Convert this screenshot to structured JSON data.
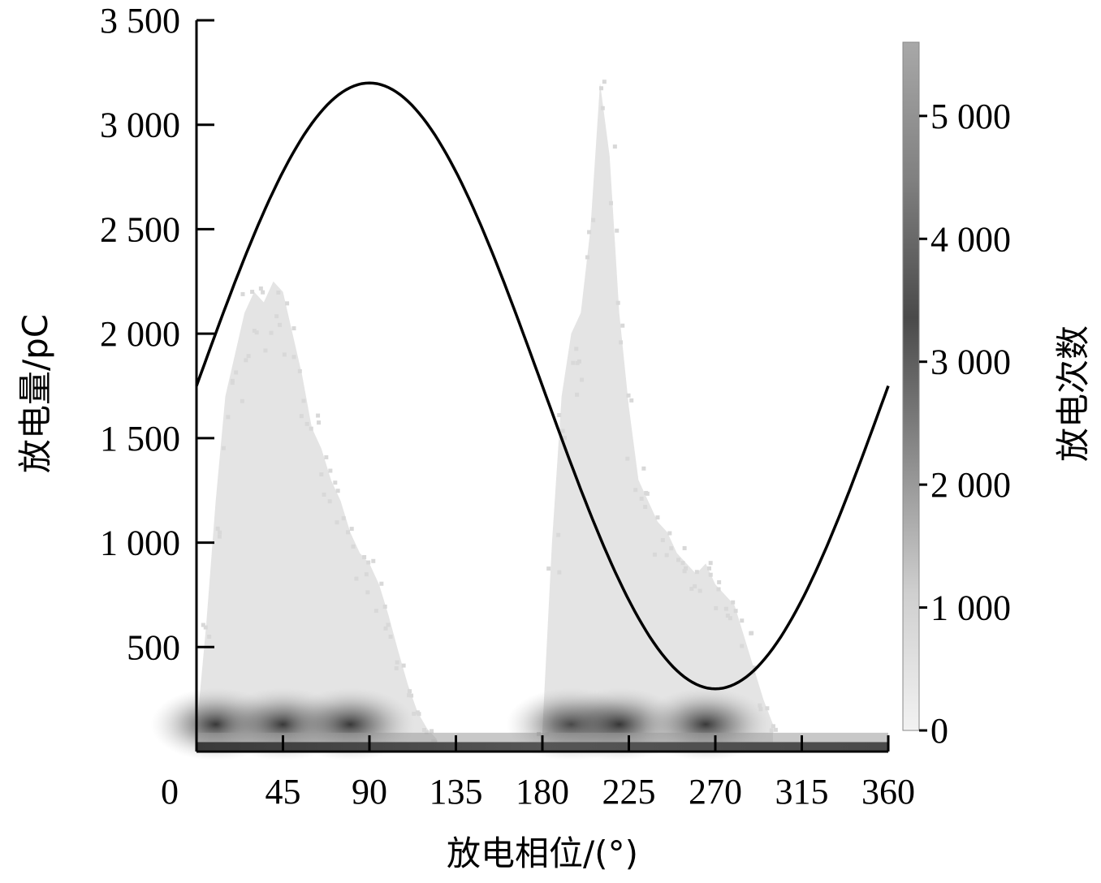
{
  "chart_data": {
    "type": "heatmap",
    "title": "",
    "xlabel": "放电相位/(°)",
    "ylabel": "放电量/pC",
    "colorbar_label": "放电次数",
    "xlim": [
      0,
      360
    ],
    "ylim": [
      0,
      3500
    ],
    "x_ticks": [
      0,
      45,
      90,
      135,
      180,
      225,
      270,
      315,
      360
    ],
    "x_tick_labels": [
      "0",
      "45",
      "90",
      "135",
      "180",
      "225",
      "270",
      "315",
      "360"
    ],
    "y_ticks": [
      500,
      1000,
      1500,
      2000,
      2500,
      3000,
      3500
    ],
    "y_tick_labels": [
      "500",
      "1 000",
      "1 500",
      "2 000",
      "2 500",
      "3 000",
      "3 500"
    ],
    "colorbar_range": [
      0,
      5600
    ],
    "colorbar_ticks": [
      0,
      1000,
      2000,
      3000,
      4000,
      5000
    ],
    "colorbar_tick_labels": [
      "0",
      "1 000",
      "2 000",
      "3 000",
      "4 000",
      "5 000"
    ],
    "sine_reference": {
      "phase_deg": [
        0,
        15,
        30,
        45,
        60,
        75,
        90,
        105,
        120,
        135,
        150,
        165,
        180,
        195,
        210,
        225,
        240,
        255,
        270,
        285,
        300,
        315,
        330,
        345,
        360
      ],
      "value": [
        1750,
        2125,
        2475,
        2775,
        3000,
        3150,
        3200,
        3150,
        3000,
        2775,
        2475,
        2125,
        1750,
        1375,
        1025,
        725,
        500,
        350,
        300,
        350,
        500,
        725,
        1025,
        1375,
        1750
      ]
    },
    "discharge_clusters": [
      {
        "phase_range_deg": [
          0,
          125
        ],
        "max_discharge_pC": 2250,
        "envelope": {
          "phase_deg": [
            0,
            5,
            10,
            15,
            20,
            25,
            30,
            35,
            40,
            45,
            50,
            55,
            60,
            65,
            70,
            75,
            80,
            85,
            90,
            95,
            100,
            105,
            110,
            115,
            120,
            125
          ],
          "discharge_pC": [
            100,
            600,
            1200,
            1700,
            1900,
            2100,
            2200,
            2150,
            2250,
            2200,
            2000,
            1800,
            1550,
            1450,
            1300,
            1200,
            1050,
            950,
            900,
            800,
            650,
            480,
            320,
            190,
            110,
            60
          ]
        },
        "dense_phase_deg": [
          10,
          45,
          80
        ]
      },
      {
        "phase_range_deg": [
          180,
          300
        ],
        "max_discharge_pC": 3200,
        "envelope": {
          "phase_deg": [
            180,
            185,
            190,
            195,
            200,
            205,
            210,
            215,
            220,
            225,
            230,
            235,
            240,
            245,
            250,
            255,
            260,
            265,
            270,
            275,
            280,
            285,
            290,
            295,
            300
          ],
          "discharge_pC": [
            100,
            1000,
            1700,
            2000,
            2100,
            2500,
            3200,
            2850,
            2100,
            1650,
            1300,
            1200,
            1100,
            1050,
            950,
            900,
            850,
            900,
            800,
            750,
            700,
            550,
            400,
            250,
            130
          ]
        },
        "dense_phase_deg": [
          195,
          220,
          265
        ]
      }
    ],
    "baseline_band_pC": [
      0,
      90
    ]
  }
}
